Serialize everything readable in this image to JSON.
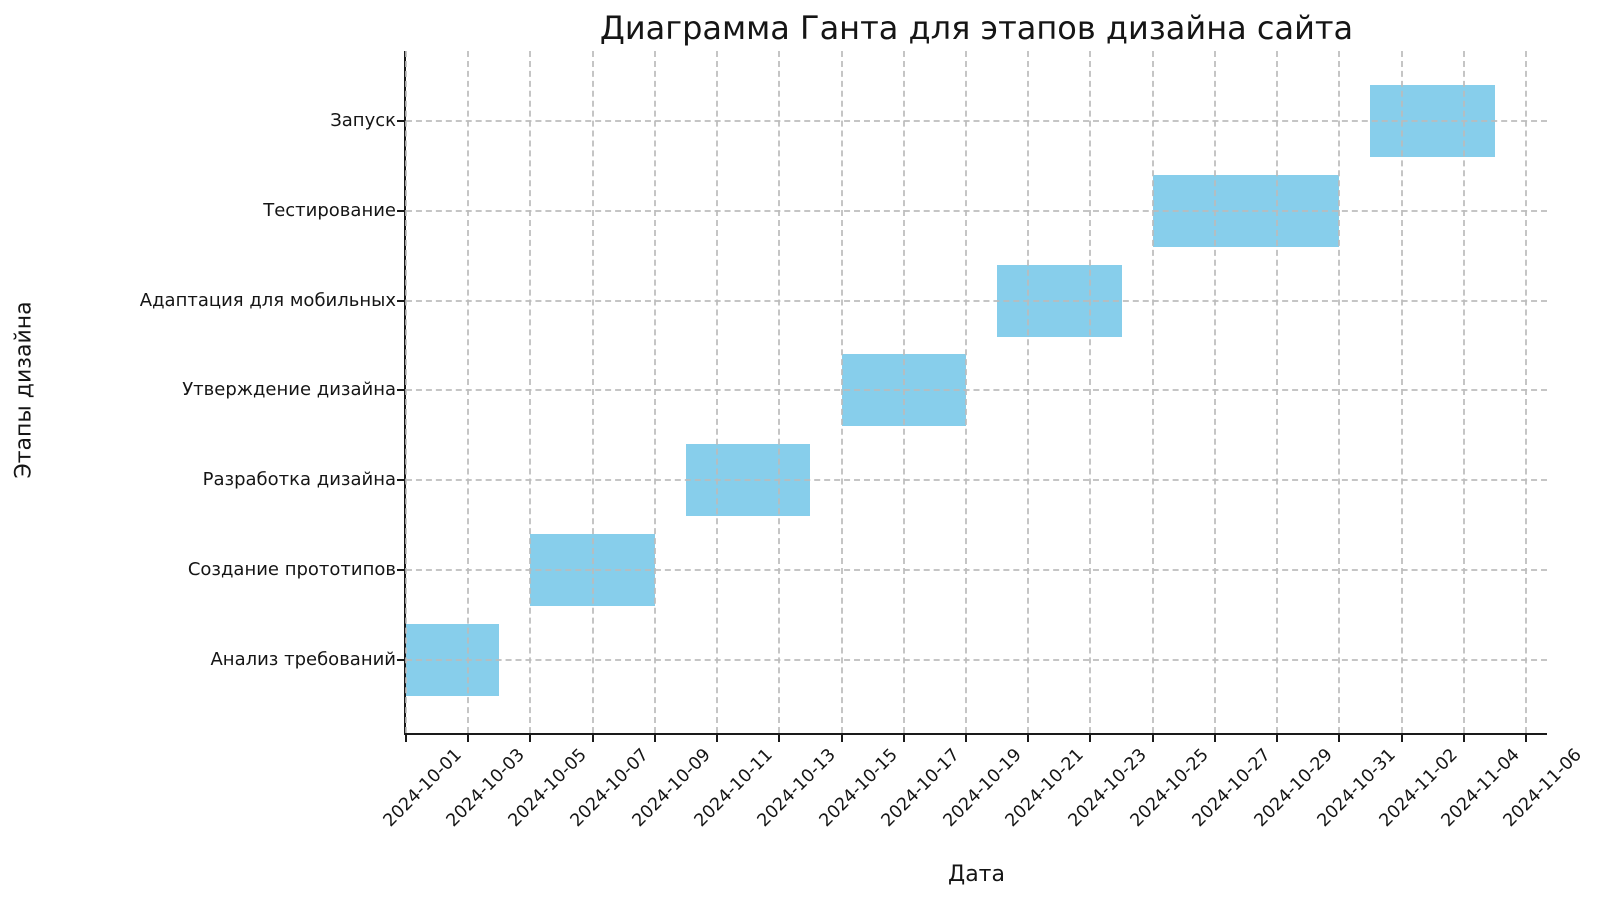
{
  "title": "Диаграмма Ганта для этапов дизайна сайта",
  "x_axis": {
    "label": "Дата",
    "tick_labels": [
      "2024-10-01",
      "2024-10-03",
      "2024-10-05",
      "2024-10-07",
      "2024-10-09",
      "2024-10-11",
      "2024-10-13",
      "2024-10-15",
      "2024-10-17",
      "2024-10-19",
      "2024-10-21",
      "2024-10-23",
      "2024-10-25",
      "2024-10-27",
      "2024-10-29",
      "2024-10-31",
      "2024-11-02",
      "2024-11-04",
      "2024-11-06"
    ]
  },
  "y_axis": {
    "label": "Этапы дизайна",
    "tick_labels": [
      "Запуск",
      "Тестирование",
      "Адаптация для мобильных",
      "Утверждение дизайна",
      "Разработка дизайна",
      "Создание прототипов",
      "Анализ требований"
    ]
  },
  "chart_data": {
    "type": "bar",
    "subtype": "gantt",
    "title": "Диаграмма Ганта для этапов дизайна сайта",
    "xlabel": "Дата",
    "ylabel": "Этапы дизайна",
    "bar_color": "#87CEEB",
    "grid": "dashed, light gray, drawn over bars",
    "legend": "none",
    "x_start": "2024-10-01",
    "x_tick_interval_days": 2,
    "x_range": [
      "2024-10-01",
      "2024-11-06"
    ],
    "tasks_top_to_bottom": [
      {
        "label": "Запуск",
        "start": "2024-11-01",
        "end": "2024-11-05",
        "duration_days": 4
      },
      {
        "label": "Тестирование",
        "start": "2024-10-25",
        "end": "2024-10-31",
        "duration_days": 6
      },
      {
        "label": "Адаптация для мобильных",
        "start": "2024-10-20",
        "end": "2024-10-24",
        "duration_days": 4
      },
      {
        "label": "Утверждение дизайна",
        "start": "2024-10-15",
        "end": "2024-10-19",
        "duration_days": 4
      },
      {
        "label": "Разработка дизайна",
        "start": "2024-10-10",
        "end": "2024-10-14",
        "duration_days": 4
      },
      {
        "label": "Создание прототипов",
        "start": "2024-10-05",
        "end": "2024-10-09",
        "duration_days": 4
      },
      {
        "label": "Анализ требований",
        "start": "2024-10-01",
        "end": "2024-10-04",
        "duration_days": 3
      }
    ]
  }
}
